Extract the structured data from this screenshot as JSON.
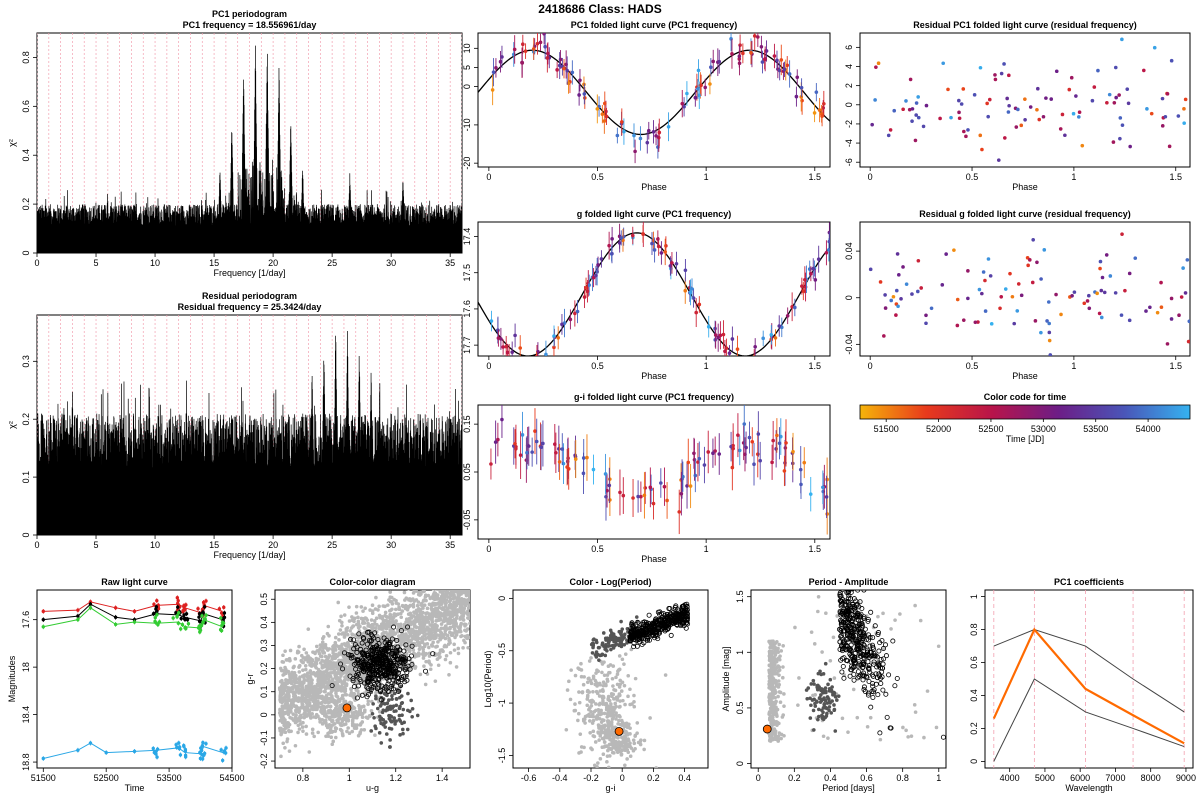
{
  "page_title": "2418686    Class: HADS",
  "colors": {
    "curve": "#000000",
    "highlight": "#ff6a00",
    "grey": "#b8b8b8",
    "dark_grey": "#555555",
    "red": "#dd2020",
    "green": "#33cc33",
    "blue": "#2aa7e6",
    "pink_line": "#f2a0b0"
  },
  "chart_data": [
    {
      "id": "pc1-periodogram",
      "type": "periodogram",
      "title": "PC1 periodogram",
      "subtitle": "PC1 frequency = 18.556961/day",
      "xlabel": "Frequency [1/day]",
      "ylabel": "χ²",
      "xlim": [
        0,
        36
      ],
      "ylim": [
        0,
        0.9
      ],
      "xticks": [
        0,
        5,
        10,
        15,
        20,
        25,
        30,
        35
      ],
      "yticks": [
        0.0,
        0.2,
        0.4,
        0.6,
        0.8
      ],
      "base_level": 0.2,
      "peaks": [
        [
          15.5,
          0.36
        ],
        [
          16.5,
          0.55
        ],
        [
          17.5,
          0.77
        ],
        [
          18.5,
          0.87
        ],
        [
          19.5,
          0.87
        ],
        [
          20.5,
          0.78
        ],
        [
          21.5,
          0.56
        ],
        [
          22.5,
          0.37
        ],
        [
          26.5,
          0.34
        ],
        [
          31,
          0.32
        ]
      ]
    },
    {
      "id": "residual-periodogram",
      "type": "periodogram",
      "title": "Residual periodogram",
      "subtitle": "Residual frequency = 25.3424/day",
      "xlabel": "Frequency [1/day]",
      "ylabel": "χ²",
      "xlim": [
        0,
        36
      ],
      "ylim": [
        0,
        0.38
      ],
      "xticks": [
        0,
        5,
        10,
        15,
        20,
        25,
        30,
        35
      ],
      "yticks": [
        0.0,
        0.1,
        0.2,
        0.3
      ],
      "base_level": 0.21,
      "peaks": [
        [
          24.3,
          0.34
        ],
        [
          25.3,
          0.37
        ],
        [
          26.3,
          0.36
        ],
        [
          27.3,
          0.33
        ],
        [
          23.3,
          0.3
        ],
        [
          28.3,
          0.3
        ],
        [
          9.5,
          0.28
        ],
        [
          3,
          0.27
        ]
      ]
    },
    {
      "id": "pc1-folded",
      "type": "scatter",
      "title": "PC1 folded light curve (PC1 frequency)",
      "xlabel": "Phase",
      "ylabel": "",
      "xlim": [
        -0.05,
        1.57
      ],
      "ylim": [
        -21,
        14
      ],
      "xticks": [
        0.0,
        0.5,
        1.0,
        1.5
      ],
      "yticks": [
        10,
        5,
        0,
        -10,
        -20
      ],
      "model": {
        "mean": -1.5,
        "amp": 11,
        "phase_peak": 0.2
      }
    },
    {
      "id": "residual-pc1",
      "type": "scatter",
      "title": "Residual PC1 folded light curve (residual frequency)",
      "xlabel": "Phase",
      "ylabel": "",
      "xlim": [
        -0.05,
        1.57
      ],
      "ylim": [
        -6.5,
        7.5
      ],
      "xticks": [
        0.0,
        0.5,
        1.0,
        1.5
      ],
      "yticks": [
        6,
        4,
        2,
        0,
        -2,
        -4,
        -6
      ]
    },
    {
      "id": "g-folded",
      "type": "scatter",
      "title": "g folded light curve (PC1 frequency)",
      "xlabel": "Phase",
      "ylabel": "",
      "xlim": [
        -0.05,
        1.57
      ],
      "ylim": [
        17.73,
        17.36
      ],
      "reversed_y": true,
      "xticks": [
        0.0,
        0.5,
        1.0,
        1.5
      ],
      "yticks": [
        17.4,
        17.5,
        17.6,
        17.7
      ],
      "model": {
        "mean": 17.56,
        "amp": -0.17,
        "phase_peak": 0.68
      }
    },
    {
      "id": "residual-g",
      "type": "scatter",
      "title": "Residual g folded light curve (residual frequency)",
      "xlabel": "Phase",
      "ylabel": "",
      "xlim": [
        -0.05,
        1.57
      ],
      "ylim": [
        -0.05,
        0.065
      ],
      "xticks": [
        0.0,
        0.5,
        1.0,
        1.5
      ],
      "yticks": [
        0.04,
        0.0,
        -0.04
      ]
    },
    {
      "id": "gi-folded",
      "type": "scatter",
      "title": "g-i folded light curve (PC1 frequency)",
      "xlabel": "Phase",
      "ylabel": "",
      "xlim": [
        -0.05,
        1.57
      ],
      "ylim": [
        -0.09,
        0.19
      ],
      "xticks": [
        0.0,
        0.5,
        1.0,
        1.5
      ],
      "yticks": [
        0.15,
        0.05,
        -0.05
      ]
    },
    {
      "id": "color-key",
      "type": "colorbar",
      "title": "Color code for time",
      "xlabel": "Time [JD]",
      "xlim": [
        51250,
        54400
      ],
      "xticks": [
        51500,
        52000,
        52500,
        53000,
        53500,
        54000
      ],
      "stops": [
        "#f5b40a",
        "#e83a1c",
        "#b8144a",
        "#6d1d86",
        "#4a55b8",
        "#35b2f0"
      ]
    },
    {
      "id": "raw-light-curve",
      "type": "line",
      "title": "Raw light curve",
      "xlabel": "Time",
      "ylabel": "Magnitudes",
      "xlim": [
        51400,
        54500
      ],
      "ylim": [
        18.85,
        17.35
      ],
      "reversed_y": true,
      "xticks": [
        51500,
        52500,
        53500,
        54500
      ],
      "yticks": [
        17.6,
        18.0,
        18.4,
        18.8
      ],
      "series": [
        {
          "color": "#dd2020",
          "x": [
            51500,
            52050,
            52250,
            52650,
            52950,
            53300,
            53650,
            53750,
            54000,
            54050,
            54350
          ],
          "y": [
            17.53,
            17.52,
            17.45,
            17.5,
            17.53,
            17.48,
            17.47,
            17.5,
            17.54,
            17.48,
            17.53
          ]
        },
        {
          "color": "#000000",
          "x": [
            51500,
            52050,
            52250,
            52650,
            52950,
            53300,
            53650,
            53750,
            54000,
            54050,
            54350
          ],
          "y": [
            17.6,
            17.57,
            17.47,
            17.58,
            17.6,
            17.55,
            17.56,
            17.58,
            17.61,
            17.55,
            17.6
          ]
        },
        {
          "color": "#33cc33",
          "x": [
            51500,
            52050,
            52250,
            52650,
            52950,
            53300,
            53650,
            53750,
            54000,
            54050,
            54350
          ],
          "y": [
            17.66,
            17.6,
            17.5,
            17.64,
            17.62,
            17.63,
            17.62,
            17.66,
            17.67,
            17.6,
            17.66
          ]
        },
        {
          "color": "#2aa7e6",
          "x": [
            51500,
            52050,
            52250,
            52500,
            52950,
            53300,
            53650,
            53750,
            54000,
            54050,
            54350
          ],
          "y": [
            18.77,
            18.7,
            18.64,
            18.72,
            18.71,
            18.7,
            18.68,
            18.72,
            18.73,
            18.67,
            18.72
          ]
        }
      ]
    },
    {
      "id": "color-color",
      "type": "scatter",
      "title": "Color-color diagram",
      "xlabel": "u-g",
      "ylabel": "g-r",
      "xlim": [
        0.68,
        1.52
      ],
      "ylim": [
        -0.23,
        0.54
      ],
      "xticks": [
        0.8,
        1.0,
        1.2,
        1.4
      ],
      "yticks": [
        -0.2,
        -0.1,
        0.0,
        0.1,
        0.2,
        0.3,
        0.4,
        0.5
      ],
      "highlight": [
        0.99,
        0.03
      ]
    },
    {
      "id": "color-logperiod",
      "type": "scatter",
      "title": "Color - Log(Period)",
      "xlabel": "g-i",
      "ylabel": "Log10(Period)",
      "xlim": [
        -0.7,
        0.55
      ],
      "ylim": [
        -1.62,
        0.08
      ],
      "xticks": [
        -0.6,
        -0.4,
        -0.2,
        0.0,
        0.2,
        0.4
      ],
      "yticks": [
        0.0,
        -0.5,
        -1.0,
        -1.5
      ],
      "highlight": [
        -0.02,
        -1.27
      ]
    },
    {
      "id": "period-amplitude",
      "type": "scatter",
      "title": "Period - Amplitude",
      "xlabel": "Period [days]",
      "ylabel": "Amplitude [mag]",
      "xlim": [
        -0.04,
        1.04
      ],
      "ylim": [
        -0.04,
        1.56
      ],
      "xticks": [
        0.0,
        0.2,
        0.4,
        0.6,
        0.8,
        1.0
      ],
      "yticks": [
        0.0,
        0.5,
        1.0,
        1.5
      ],
      "highlight": [
        0.05,
        0.31
      ]
    },
    {
      "id": "pc1-coefficients",
      "type": "line",
      "title": "PC1 coefficients",
      "xlabel": "Wavelength",
      "ylabel": "",
      "xlim": [
        3300,
        9200
      ],
      "ylim": [
        -0.04,
        1.04
      ],
      "xticks": [
        4000,
        5000,
        6000,
        7000,
        8000,
        9000
      ],
      "yticks": [
        0.0,
        0.2,
        0.4,
        0.6,
        0.8,
        1.0
      ],
      "vlines": [
        3550,
        4700,
        6150,
        7500,
        8950
      ],
      "series": [
        {
          "name": "upper",
          "color": "#444444",
          "x": [
            3550,
            4700,
            6150,
            7500,
            8950
          ],
          "y": [
            0.7,
            0.8,
            0.7,
            0.5,
            0.3
          ]
        },
        {
          "name": "pc1",
          "color": "#ff6a00",
          "x": [
            3550,
            4700,
            6150,
            7500,
            8950
          ],
          "y": [
            0.26,
            0.8,
            0.44,
            0.28,
            0.11
          ]
        },
        {
          "name": "lower",
          "color": "#444444",
          "x": [
            3550,
            4700,
            6150,
            7500,
            8950
          ],
          "y": [
            0.0,
            0.5,
            0.3,
            0.2,
            0.09
          ]
        }
      ]
    }
  ]
}
